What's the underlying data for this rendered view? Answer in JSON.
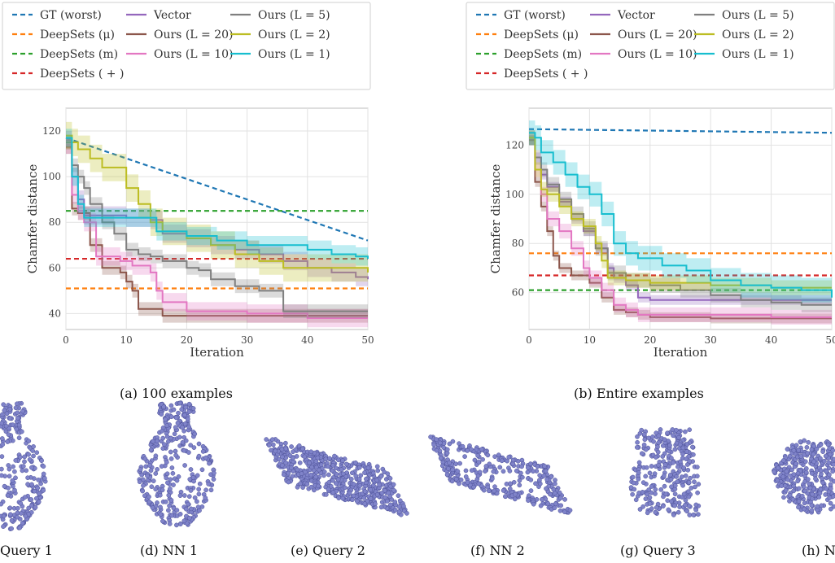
{
  "legend_entries": [
    {
      "label": "GT (worst)",
      "color": "#1f77b4",
      "dash": true
    },
    {
      "label": "DeepSets (μ)",
      "color": "#ff7f0e",
      "dash": true
    },
    {
      "label": "DeepSets (m)",
      "color": "#2ca02c",
      "dash": true
    },
    {
      "label": "DeepSets ( + )",
      "color": "#d62728",
      "dash": true
    },
    {
      "label": "Vector",
      "color": "#9467bd",
      "dash": false
    },
    {
      "label": "Ours (L = 20)",
      "color": "#8c564b",
      "dash": false
    },
    {
      "label": "Ours (L = 10)",
      "color": "#e377c2",
      "dash": false
    },
    {
      "label": "Ours (L = 5)",
      "color": "#7f7f7f",
      "dash": false
    },
    {
      "label": "Ours (L = 2)",
      "color": "#bcbd22",
      "dash": false
    },
    {
      "label": "Ours (L = 1)",
      "color": "#17becf",
      "dash": false
    }
  ],
  "chart_data": [
    {
      "type": "line",
      "caption": "(a) 100 examples",
      "xlabel": "Iteration",
      "ylabel": "Chamfer distance",
      "xlim": [
        0,
        50
      ],
      "ylim": [
        33,
        130
      ],
      "xticks": [
        0,
        10,
        20,
        30,
        40,
        50
      ],
      "yticks": [
        40,
        60,
        80,
        100,
        120
      ],
      "grid": true,
      "legend_position": "top",
      "series": [
        {
          "name": "GT (worst)",
          "style": "dashed",
          "x": [
            0,
            50
          ],
          "y": [
            117,
            72
          ]
        },
        {
          "name": "DeepSets (μ)",
          "style": "dashed",
          "x": [
            0,
            50
          ],
          "y": [
            51,
            51
          ]
        },
        {
          "name": "DeepSets (m)",
          "style": "dashed",
          "x": [
            0,
            50
          ],
          "y": [
            85,
            85
          ]
        },
        {
          "name": "DeepSets ( + )",
          "style": "dashed",
          "x": [
            0,
            50
          ],
          "y": [
            64,
            64
          ]
        },
        {
          "name": "Vector",
          "style": "step",
          "band": 4,
          "x": [
            0,
            1,
            2,
            3,
            5,
            10,
            14,
            16,
            20,
            24,
            28,
            32,
            36,
            40,
            44,
            48,
            50
          ],
          "y": [
            116,
            100,
            90,
            83,
            83,
            82,
            81,
            75,
            73,
            70,
            68,
            66,
            63,
            60,
            58,
            56,
            55
          ]
        },
        {
          "name": "Ours (L = 20)",
          "style": "step",
          "band": 3,
          "x": [
            0,
            1,
            2,
            4,
            6,
            9,
            10,
            11,
            12,
            16,
            50
          ],
          "y": [
            113,
            86,
            84,
            70,
            60,
            58,
            54,
            50,
            42,
            39,
            39
          ]
        },
        {
          "name": "Ours (L = 10)",
          "style": "step",
          "band": 4,
          "x": [
            0,
            1,
            2,
            3,
            5,
            9,
            11,
            14,
            15,
            16,
            20,
            30,
            40,
            50
          ],
          "y": [
            114,
            92,
            85,
            80,
            65,
            63,
            61,
            58,
            50,
            45,
            41,
            40,
            38,
            38
          ]
        },
        {
          "name": "Ours (L = 5)",
          "style": "step",
          "band": 3,
          "x": [
            0,
            1,
            2,
            3,
            4,
            6,
            8,
            10,
            12,
            14,
            16,
            20,
            22,
            24,
            28,
            32,
            36,
            50
          ],
          "y": [
            115,
            105,
            100,
            95,
            88,
            80,
            75,
            68,
            66,
            65,
            63,
            60,
            59,
            55,
            52,
            50,
            41,
            41
          ]
        },
        {
          "name": "Ours (L = 2)",
          "style": "step",
          "band": 6,
          "x": [
            0,
            1,
            2,
            4,
            6,
            10,
            12,
            14,
            16,
            20,
            24,
            28,
            32,
            36,
            40,
            44,
            50
          ],
          "y": [
            118,
            115,
            112,
            108,
            104,
            95,
            88,
            80,
            76,
            73,
            70,
            66,
            63,
            60,
            60,
            60,
            58
          ]
        },
        {
          "name": "Ours (L = 1)",
          "style": "step",
          "band": 4,
          "x": [
            0,
            1,
            2,
            3,
            4,
            10,
            15,
            20,
            25,
            30,
            35,
            40,
            44,
            48,
            50
          ],
          "y": [
            117,
            100,
            88,
            82,
            82,
            82,
            76,
            74,
            72,
            70,
            70,
            68,
            66,
            65,
            64
          ]
        }
      ]
    },
    {
      "type": "line",
      "caption": "(b) Entire examples",
      "xlabel": "Iteration",
      "ylabel": "Chamfer distance",
      "xlim": [
        0,
        50
      ],
      "ylim": [
        45,
        135
      ],
      "xticks": [
        0,
        10,
        20,
        30,
        40,
        50
      ],
      "yticks": [
        60,
        80,
        100,
        120
      ],
      "grid": true,
      "legend_position": "top",
      "series": [
        {
          "name": "GT (worst)",
          "style": "dashed",
          "x": [
            0,
            50
          ],
          "y": [
            126.5,
            125
          ]
        },
        {
          "name": "DeepSets (μ)",
          "style": "dashed",
          "x": [
            0,
            50
          ],
          "y": [
            76,
            76
          ]
        },
        {
          "name": "DeepSets (m)",
          "style": "dashed",
          "x": [
            0,
            50
          ],
          "y": [
            61,
            61
          ]
        },
        {
          "name": "DeepSets ( + )",
          "style": "dashed",
          "x": [
            0,
            50
          ],
          "y": [
            67,
            67
          ]
        },
        {
          "name": "Vector",
          "style": "step",
          "band": 2,
          "x": [
            0,
            1,
            2,
            3,
            5,
            7,
            9,
            11,
            13,
            14,
            16,
            18,
            20,
            30,
            40,
            50
          ],
          "y": [
            122,
            115,
            108,
            103,
            97,
            90,
            85,
            78,
            70,
            66,
            63,
            58,
            57,
            57,
            57,
            57
          ]
        },
        {
          "name": "Ours (L = 20)",
          "style": "step",
          "band": 2,
          "x": [
            0,
            1,
            2,
            3,
            4,
            5,
            7,
            10,
            12,
            14,
            16,
            18,
            20,
            30,
            40,
            50
          ],
          "y": [
            122,
            105,
            95,
            85,
            75,
            70,
            67,
            64,
            58,
            53,
            52,
            51,
            50,
            49.5,
            49.5,
            49.5
          ]
        },
        {
          "name": "Ours (L = 10)",
          "style": "step",
          "band": 3,
          "x": [
            0,
            1,
            2,
            3,
            5,
            7,
            9,
            10,
            12,
            14,
            16,
            18,
            20,
            30,
            40,
            50
          ],
          "y": [
            123,
            110,
            100,
            90,
            85,
            78,
            70,
            66,
            61,
            55,
            53,
            51,
            51,
            51,
            50,
            50
          ]
        },
        {
          "name": "Ours (L = 5)",
          "style": "step",
          "band": 3,
          "x": [
            0,
            1,
            2,
            3,
            5,
            7,
            9,
            11,
            13,
            16,
            20,
            25,
            30,
            35,
            40,
            45,
            50
          ],
          "y": [
            123,
            115,
            110,
            104,
            98,
            92,
            86,
            78,
            68,
            65,
            63,
            61,
            59,
            57,
            56,
            55,
            55
          ]
        },
        {
          "name": "Ours (L = 2)",
          "style": "step",
          "band": 3,
          "x": [
            0,
            1,
            2,
            3,
            5,
            7,
            9,
            11,
            12,
            13,
            16,
            20,
            30,
            40,
            50
          ],
          "y": [
            123,
            110,
            102,
            100,
            95,
            90,
            87,
            80,
            73,
            66,
            65,
            64,
            63,
            62,
            62
          ]
        },
        {
          "name": "Ours (L = 1)",
          "style": "step",
          "band": 5,
          "x": [
            0,
            1,
            2,
            4,
            6,
            8,
            10,
            12,
            14,
            16,
            18,
            22,
            26,
            30,
            35,
            40,
            45,
            50
          ],
          "y": [
            125,
            123,
            117,
            113,
            108,
            103,
            100,
            92,
            80,
            76,
            74,
            71,
            69,
            65,
            63,
            62,
            61,
            58
          ]
        }
      ]
    }
  ],
  "point_clouds": [
    {
      "caption": "Query 1",
      "shape": "vase"
    },
    {
      "caption": "(d) NN 1",
      "shape": "vase"
    },
    {
      "caption": "(e) Query 2",
      "shape": "box"
    },
    {
      "caption": "(f) NN 2",
      "shape": "tray"
    },
    {
      "caption": "(g) Query 3",
      "shape": "chair"
    },
    {
      "caption": "(h) N",
      "shape": "blob"
    }
  ]
}
